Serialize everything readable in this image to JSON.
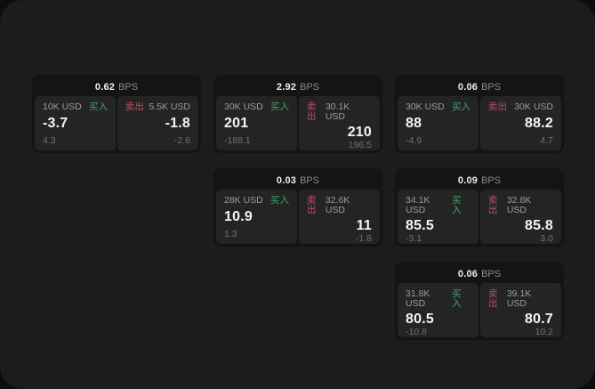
{
  "labels": {
    "buy": "买入",
    "sell": "卖出",
    "bps_unit": "BPS"
  },
  "colors": {
    "background_outer": "#0d0d0d",
    "window_background": "#1c1c1c",
    "card_background": "#141414",
    "panel_background": "#242424",
    "buy_green": "#3fa56a",
    "sell_red": "#c04e61",
    "primary_text": "#f5f5f5",
    "muted_text": "#9b9b9b",
    "faint_text": "#707070"
  },
  "cards": [
    {
      "bps": "0.62",
      "buy": {
        "amount": "10K USD",
        "price": "-3.7",
        "delta": "4.3"
      },
      "sell": {
        "amount": "5.5K USD",
        "price": "-1.8",
        "delta": "-2.6"
      }
    },
    {
      "bps": "2.92",
      "buy": {
        "amount": "30K USD",
        "price": "201",
        "delta": "-188.1"
      },
      "sell": {
        "amount": "30.1K USD",
        "price": "210",
        "delta": "196.5"
      }
    },
    {
      "bps": "0.06",
      "buy": {
        "amount": "30K USD",
        "price": "88",
        "delta": "-4.9"
      },
      "sell": {
        "amount": "30K USD",
        "price": "88.2",
        "delta": "4.7"
      }
    },
    {
      "bps": "0.03",
      "buy": {
        "amount": "28K USD",
        "price": "10.9",
        "delta": "1.3"
      },
      "sell": {
        "amount": "32.6K USD",
        "price": "11",
        "delta": "-1.8"
      }
    },
    {
      "bps": "0.09",
      "buy": {
        "amount": "34.1K USD",
        "price": "85.5",
        "delta": "-3.1"
      },
      "sell": {
        "amount": "32.8K USD",
        "price": "85.8",
        "delta": "3.0"
      }
    },
    {
      "bps": "0.06",
      "buy": {
        "amount": "31.8K USD",
        "price": "80.5",
        "delta": "-10.8"
      },
      "sell": {
        "amount": "39.1K USD",
        "price": "80.7",
        "delta": "10.2"
      }
    }
  ]
}
